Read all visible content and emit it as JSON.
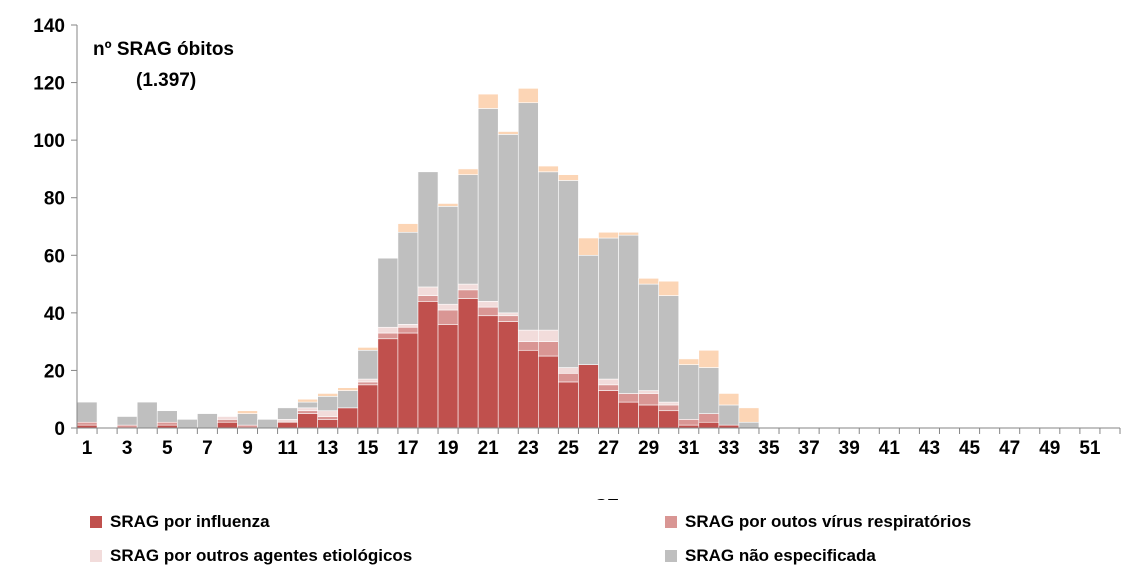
{
  "chart_data": {
    "type": "bar",
    "stacked": true,
    "annotation": [
      "nº SRAG óbitos",
      "(1.397)"
    ],
    "xlabel": "SE",
    "ylabel": "",
    "ylim": [
      0,
      140
    ],
    "yticks": [
      0,
      20,
      40,
      60,
      80,
      100,
      120,
      140
    ],
    "x": [
      1,
      2,
      3,
      4,
      5,
      6,
      7,
      8,
      9,
      10,
      11,
      12,
      13,
      14,
      15,
      16,
      17,
      18,
      19,
      20,
      21,
      22,
      23,
      24,
      25,
      26,
      27,
      28,
      29,
      30,
      31,
      32,
      33,
      34,
      35,
      36,
      37,
      38,
      39,
      40,
      41,
      42,
      43,
      44,
      45,
      46,
      47,
      48,
      49,
      50,
      51,
      52
    ],
    "xtick_labels": [
      "1",
      "3",
      "5",
      "7",
      "9",
      "11",
      "13",
      "15",
      "17",
      "19",
      "21",
      "23",
      "25",
      "27",
      "29",
      "31",
      "33",
      "35",
      "37",
      "39",
      "41",
      "43",
      "45",
      "47",
      "49",
      "51"
    ],
    "colors": {
      "influenza": "#c0504d",
      "outros_virus": "#d99694",
      "outros_agentes": "#f2dcdb",
      "nao_especificada": "#bfbfbf",
      "top": "#fcd5b5"
    },
    "series": [
      {
        "name": "SRAG por influenza",
        "key": "influenza",
        "values": [
          1,
          0,
          0,
          0,
          1,
          0,
          0,
          2,
          0,
          0,
          2,
          5,
          3,
          7,
          15,
          31,
          33,
          44,
          36,
          45,
          39,
          37,
          27,
          25,
          16,
          22,
          13,
          9,
          8,
          6,
          1,
          2,
          1,
          0,
          0,
          0,
          0,
          0,
          0,
          0,
          0,
          0,
          0,
          0,
          0,
          0,
          0,
          0,
          0,
          0,
          0,
          0
        ]
      },
      {
        "name": "SRAG por outos vírus respiratórios",
        "key": "outros_virus",
        "values": [
          1,
          0,
          1,
          0,
          1,
          0,
          0,
          1,
          1,
          0,
          0,
          1,
          1,
          0,
          1,
          2,
          2,
          2,
          5,
          3,
          3,
          2,
          3,
          5,
          3,
          0,
          2,
          3,
          4,
          2,
          2,
          3,
          0,
          0,
          0,
          0,
          0,
          0,
          0,
          0,
          0,
          0,
          0,
          0,
          0,
          0,
          0,
          0,
          0,
          0,
          0,
          0
        ]
      },
      {
        "name": "SRAG por outros agentes etiológicos",
        "key": "outros_agentes",
        "values": [
          0,
          0,
          0,
          0,
          0,
          0,
          0,
          1,
          0,
          0,
          1,
          1,
          2,
          0,
          1,
          2,
          1,
          3,
          2,
          2,
          2,
          1,
          4,
          4,
          2,
          0,
          2,
          0,
          1,
          1,
          0,
          0,
          0,
          0,
          0,
          0,
          0,
          0,
          0,
          0,
          0,
          0,
          0,
          0,
          0,
          0,
          0,
          0,
          0,
          0,
          0,
          0
        ]
      },
      {
        "name": "SRAG não especificada",
        "key": "nao_especificada",
        "values": [
          7,
          0,
          3,
          9,
          4,
          3,
          5,
          0,
          4,
          3,
          4,
          2,
          5,
          6,
          10,
          24,
          32,
          40,
          34,
          38,
          67,
          62,
          79,
          55,
          65,
          38,
          49,
          55,
          37,
          37,
          19,
          16,
          7,
          2,
          0,
          0,
          0,
          0,
          0,
          0,
          0,
          0,
          0,
          0,
          0,
          0,
          0,
          0,
          0,
          0,
          0,
          0
        ]
      },
      {
        "key": "top",
        "values": [
          0,
          0,
          0,
          0,
          0,
          0,
          0,
          0,
          1,
          0,
          0,
          1,
          1,
          1,
          1,
          0,
          3,
          0,
          1,
          2,
          5,
          1,
          5,
          2,
          2,
          6,
          2,
          1,
          2,
          5,
          2,
          6,
          4,
          5,
          0,
          0,
          0,
          0,
          0,
          0,
          0,
          0,
          0,
          0,
          0,
          0,
          0,
          0,
          0,
          0,
          0,
          0
        ]
      }
    ],
    "legend_position": "bottom"
  }
}
